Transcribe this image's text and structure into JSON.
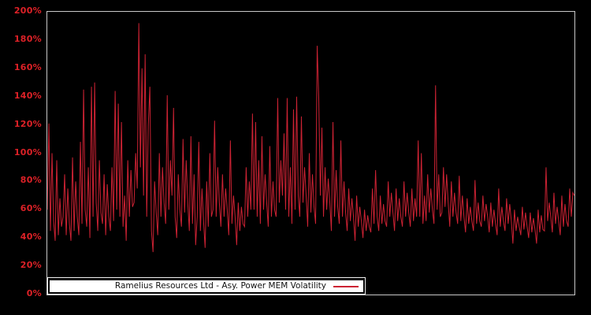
{
  "window": {
    "background": "#000000"
  },
  "chart_data": {
    "type": "line",
    "title": "",
    "xlabel": "",
    "ylabel": "",
    "ylim": [
      0,
      200
    ],
    "ytick_format": "percent",
    "yticks": [
      "0%",
      "20%",
      "40%",
      "60%",
      "80%",
      "100%",
      "120%",
      "140%",
      "160%",
      "180%",
      "200%"
    ],
    "grid": false,
    "plot_border_color": "#c8c8c8",
    "tick_color": "#dd2127",
    "line_color": "#cc2233",
    "legend": {
      "position": "bottom-left",
      "label": "Ramelius Resources Ltd - Asy. Power MEM Volatility",
      "swatch": "red-line"
    },
    "series": [
      {
        "name": "Ramelius Resources Ltd - Asy. Power MEM Volatility",
        "unit": "%",
        "values": [
          60,
          121,
          45,
          100,
          52,
          38,
          95,
          42,
          68,
          48,
          55,
          85,
          42,
          75,
          50,
          38,
          97,
          45,
          80,
          55,
          42,
          108,
          50,
          145,
          60,
          48,
          90,
          40,
          147,
          55,
          150,
          65,
          45,
          95,
          58,
          50,
          85,
          42,
          78,
          55,
          45,
          90,
          52,
          144,
          60,
          135,
          55,
          122,
          48,
          70,
          38,
          95,
          55,
          88,
          62,
          65,
          100,
          75,
          192,
          90,
          160,
          70,
          170,
          55,
          120,
          147,
          45,
          30,
          80,
          58,
          42,
          100,
          55,
          90,
          65,
          50,
          141,
          60,
          95,
          70,
          132,
          55,
          40,
          85,
          60,
          48,
          110,
          58,
          95,
          65,
          45,
          112,
          50,
          85,
          35,
          55,
          108,
          45,
          75,
          52,
          33,
          80,
          48,
          100,
          55,
          60,
          123,
          55,
          90,
          65,
          48,
          85,
          55,
          75,
          60,
          42,
          109,
          50,
          70,
          55,
          35,
          65,
          45,
          62,
          50,
          48,
          90,
          55,
          80,
          60,
          128,
          60,
          122,
          55,
          95,
          50,
          112,
          60,
          85,
          65,
          48,
          105,
          55,
          80,
          60,
          55,
          139,
          65,
          95,
          70,
          114,
          60,
          139,
          55,
          90,
          50,
          131,
          60,
          140,
          70,
          55,
          126,
          65,
          90,
          70,
          48,
          100,
          58,
          85,
          62,
          50,
          176,
          139,
          70,
          118,
          55,
          90,
          60,
          82,
          65,
          45,
          122,
          55,
          88,
          62,
          50,
          109,
          55,
          80,
          58,
          45,
          75,
          52,
          68,
          55,
          38,
          70,
          48,
          62,
          52,
          40,
          60,
          45,
          56,
          48,
          44,
          75,
          50,
          88,
          55,
          45,
          70,
          50,
          64,
          52,
          48,
          80,
          55,
          72,
          58,
          45,
          75,
          52,
          68,
          55,
          48,
          80,
          55,
          72,
          58,
          48,
          75,
          52,
          68,
          55,
          109,
          55,
          100,
          50,
          70,
          52,
          85,
          58,
          75,
          60,
          50,
          148,
          60,
          85,
          55,
          58,
          90,
          62,
          85,
          65,
          48,
          80,
          55,
          72,
          58,
          50,
          84,
          52,
          70,
          55,
          44,
          68,
          50,
          62,
          52,
          45,
          81,
          50,
          65,
          52,
          48,
          70,
          52,
          64,
          55,
          44,
          65,
          48,
          60,
          50,
          42,
          75,
          48,
          62,
          52,
          45,
          68,
          50,
          64,
          52,
          36,
          60,
          45,
          55,
          48,
          42,
          62,
          46,
          58,
          48,
          40,
          58,
          44,
          54,
          46,
          36,
          60,
          44,
          56,
          46,
          45,
          90,
          52,
          65,
          55,
          44,
          72,
          50,
          62,
          52,
          42,
          70,
          48,
          64,
          52,
          48,
          75,
          55,
          72,
          70
        ]
      }
    ]
  }
}
